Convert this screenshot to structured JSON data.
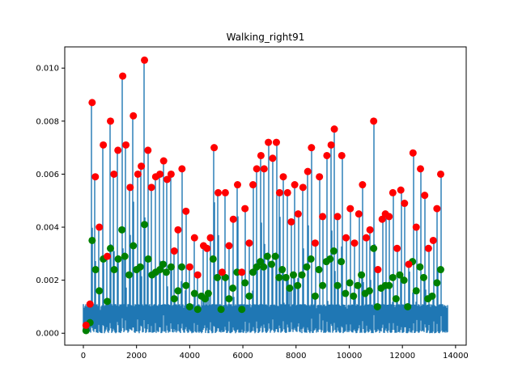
{
  "chart_data": {
    "type": "line",
    "title": "Walking_right91",
    "xlabel": "",
    "ylabel": "",
    "xlim": [
      -700,
      14400
    ],
    "ylim": [
      -0.00045,
      0.0108
    ],
    "x_ticks": [
      0,
      2000,
      4000,
      6000,
      8000,
      10000,
      12000,
      14000
    ],
    "x_tick_labels": [
      "0",
      "2000",
      "4000",
      "6000",
      "8000",
      "10000",
      "12000",
      "14000"
    ],
    "y_ticks": [
      0.0,
      0.002,
      0.004,
      0.006,
      0.008,
      0.01
    ],
    "y_tick_labels": [
      "0.000",
      "0.002",
      "0.004",
      "0.006",
      "0.008",
      "0.010"
    ],
    "grid": false,
    "line_color": "#1f77b4",
    "signal_length": 13700,
    "series": [
      {
        "color": "#ff0000",
        "marker": "o",
        "points": [
          [
            100,
            0.0003
          ],
          [
            250,
            0.0011
          ],
          [
            330,
            0.0087
          ],
          [
            450,
            0.0059
          ],
          [
            600,
            0.004
          ],
          [
            750,
            0.0071
          ],
          [
            900,
            0.0029
          ],
          [
            1020,
            0.008
          ],
          [
            1150,
            0.006
          ],
          [
            1300,
            0.0069
          ],
          [
            1480,
            0.0097
          ],
          [
            1600,
            0.0071
          ],
          [
            1760,
            0.0055
          ],
          [
            1880,
            0.0082
          ],
          [
            2050,
            0.006
          ],
          [
            2180,
            0.0063
          ],
          [
            2300,
            0.0103
          ],
          [
            2430,
            0.0069
          ],
          [
            2560,
            0.0055
          ],
          [
            2720,
            0.0059
          ],
          [
            2880,
            0.006
          ],
          [
            3020,
            0.0065
          ],
          [
            3150,
            0.0058
          ],
          [
            3300,
            0.006
          ],
          [
            3420,
            0.0031
          ],
          [
            3560,
            0.0039
          ],
          [
            3710,
            0.0062
          ],
          [
            3860,
            0.0046
          ],
          [
            4000,
            0.0025
          ],
          [
            4180,
            0.0036
          ],
          [
            4300,
            0.0022
          ],
          [
            4520,
            0.0033
          ],
          [
            4650,
            0.0032
          ],
          [
            4780,
            0.0036
          ],
          [
            4920,
            0.007
          ],
          [
            5070,
            0.0053
          ],
          [
            5220,
            0.0023
          ],
          [
            5340,
            0.0053
          ],
          [
            5480,
            0.0033
          ],
          [
            5640,
            0.0043
          ],
          [
            5800,
            0.0056
          ],
          [
            5960,
            0.0023
          ],
          [
            6080,
            0.0047
          ],
          [
            6240,
            0.0034
          ],
          [
            6380,
            0.0056
          ],
          [
            6520,
            0.0062
          ],
          [
            6680,
            0.0067
          ],
          [
            6800,
            0.0062
          ],
          [
            6960,
            0.0072
          ],
          [
            7120,
            0.0066
          ],
          [
            7260,
            0.0072
          ],
          [
            7380,
            0.0053
          ],
          [
            7520,
            0.0059
          ],
          [
            7680,
            0.0053
          ],
          [
            7820,
            0.0042
          ],
          [
            7950,
            0.0056
          ],
          [
            8080,
            0.0045
          ],
          [
            8260,
            0.0055
          ],
          [
            8440,
            0.0061
          ],
          [
            8580,
            0.007
          ],
          [
            8720,
            0.0034
          ],
          [
            8880,
            0.0059
          ],
          [
            9000,
            0.0044
          ],
          [
            9160,
            0.0067
          ],
          [
            9320,
            0.0071
          ],
          [
            9440,
            0.0077
          ],
          [
            9560,
            0.0044
          ],
          [
            9720,
            0.0067
          ],
          [
            9880,
            0.0036
          ],
          [
            10040,
            0.0047
          ],
          [
            10200,
            0.0034
          ],
          [
            10360,
            0.0045
          ],
          [
            10500,
            0.0056
          ],
          [
            10640,
            0.0036
          ],
          [
            10780,
            0.0039
          ],
          [
            10920,
            0.008
          ],
          [
            11080,
            0.0024
          ],
          [
            11240,
            0.0043
          ],
          [
            11360,
            0.0045
          ],
          [
            11500,
            0.0044
          ],
          [
            11640,
            0.0053
          ],
          [
            11800,
            0.0032
          ],
          [
            11940,
            0.0054
          ],
          [
            12080,
            0.0049
          ],
          [
            12240,
            0.0026
          ],
          [
            12400,
            0.0068
          ],
          [
            12520,
            0.004
          ],
          [
            12680,
            0.0062
          ],
          [
            12840,
            0.0052
          ],
          [
            12980,
            0.0032
          ],
          [
            13160,
            0.0035
          ],
          [
            13300,
            0.0047
          ],
          [
            13440,
            0.006
          ]
        ]
      },
      {
        "color": "#008000",
        "marker": "o",
        "points": [
          [
            100,
            0.0001
          ],
          [
            250,
            0.0004
          ],
          [
            330,
            0.0035
          ],
          [
            460,
            0.0024
          ],
          [
            600,
            0.0016
          ],
          [
            750,
            0.0028
          ],
          [
            900,
            0.0012
          ],
          [
            1020,
            0.0032
          ],
          [
            1160,
            0.0024
          ],
          [
            1310,
            0.0028
          ],
          [
            1450,
            0.0039
          ],
          [
            1560,
            0.0029
          ],
          [
            1720,
            0.0022
          ],
          [
            1880,
            0.0033
          ],
          [
            2000,
            0.0024
          ],
          [
            2140,
            0.0025
          ],
          [
            2300,
            0.0041
          ],
          [
            2440,
            0.0028
          ],
          [
            2580,
            0.0022
          ],
          [
            2720,
            0.0023
          ],
          [
            2880,
            0.0024
          ],
          [
            3000,
            0.0026
          ],
          [
            3120,
            0.0023
          ],
          [
            3300,
            0.0025
          ],
          [
            3420,
            0.0013
          ],
          [
            3560,
            0.0016
          ],
          [
            3700,
            0.0025
          ],
          [
            3860,
            0.0018
          ],
          [
            4000,
            0.001
          ],
          [
            4180,
            0.0015
          ],
          [
            4300,
            0.0009
          ],
          [
            4440,
            0.0014
          ],
          [
            4580,
            0.0013
          ],
          [
            4700,
            0.0015
          ],
          [
            4880,
            0.0028
          ],
          [
            5040,
            0.0021
          ],
          [
            5180,
            0.0009
          ],
          [
            5340,
            0.0021
          ],
          [
            5480,
            0.0013
          ],
          [
            5620,
            0.0017
          ],
          [
            5780,
            0.0023
          ],
          [
            5960,
            0.0009
          ],
          [
            6080,
            0.0019
          ],
          [
            6240,
            0.0014
          ],
          [
            6380,
            0.0023
          ],
          [
            6520,
            0.0025
          ],
          [
            6660,
            0.0027
          ],
          [
            6780,
            0.0025
          ],
          [
            6920,
            0.0029
          ],
          [
            7080,
            0.0026
          ],
          [
            7220,
            0.0029
          ],
          [
            7360,
            0.0021
          ],
          [
            7480,
            0.0024
          ],
          [
            7620,
            0.0021
          ],
          [
            7760,
            0.0017
          ],
          [
            7900,
            0.0022
          ],
          [
            8060,
            0.0018
          ],
          [
            8220,
            0.0022
          ],
          [
            8400,
            0.0025
          ],
          [
            8560,
            0.0028
          ],
          [
            8720,
            0.0014
          ],
          [
            8860,
            0.0024
          ],
          [
            9000,
            0.0018
          ],
          [
            9140,
            0.0027
          ],
          [
            9280,
            0.0028
          ],
          [
            9420,
            0.0031
          ],
          [
            9560,
            0.0018
          ],
          [
            9700,
            0.0027
          ],
          [
            9860,
            0.0015
          ],
          [
            10020,
            0.0019
          ],
          [
            10160,
            0.0014
          ],
          [
            10320,
            0.0018
          ],
          [
            10460,
            0.0022
          ],
          [
            10600,
            0.0015
          ],
          [
            10760,
            0.0016
          ],
          [
            10920,
            0.0032
          ],
          [
            11060,
            0.001
          ],
          [
            11200,
            0.0017
          ],
          [
            11360,
            0.0018
          ],
          [
            11500,
            0.0018
          ],
          [
            11640,
            0.0021
          ],
          [
            11760,
            0.0013
          ],
          [
            11900,
            0.0022
          ],
          [
            12060,
            0.002
          ],
          [
            12200,
            0.001
          ],
          [
            12380,
            0.0027
          ],
          [
            12520,
            0.0016
          ],
          [
            12660,
            0.0025
          ],
          [
            12800,
            0.0021
          ],
          [
            12960,
            0.0013
          ],
          [
            13120,
            0.0014
          ],
          [
            13300,
            0.0019
          ],
          [
            13440,
            0.0024
          ]
        ]
      }
    ]
  }
}
